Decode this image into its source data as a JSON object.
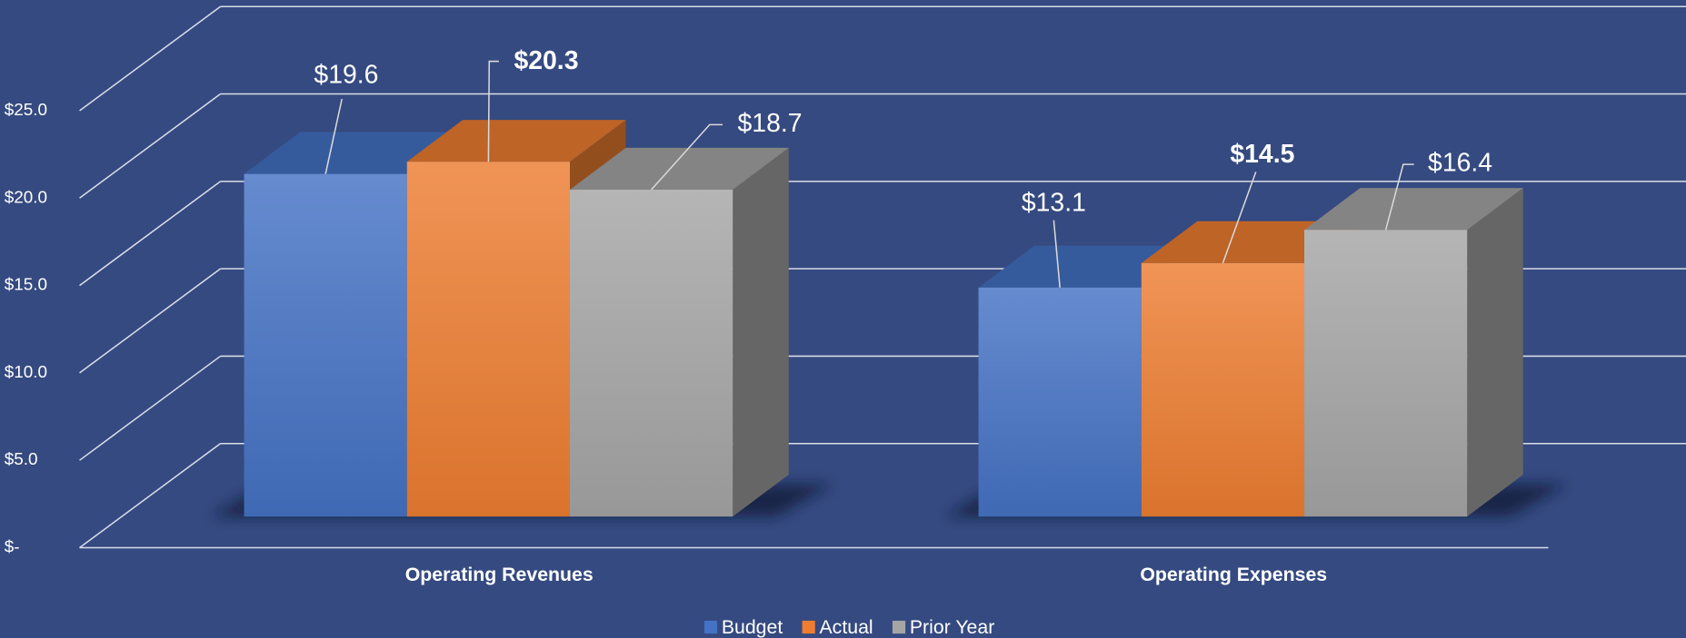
{
  "chart_data": {
    "type": "bar3d",
    "categories": [
      "Operating Revenues",
      "Operating Expenses"
    ],
    "series": [
      {
        "name": "Budget",
        "color": "#4472c4",
        "values": [
          19.6,
          13.1
        ],
        "value_labels": [
          "$19.6",
          "$13.1"
        ]
      },
      {
        "name": "Actual",
        "color": "#ed7d31",
        "values": [
          20.3,
          14.5
        ],
        "value_labels": [
          "$20.3",
          "$14.5"
        ],
        "bold_labels": true
      },
      {
        "name": "Prior Year",
        "color": "#a5a5a5",
        "values": [
          18.7,
          16.4
        ],
        "value_labels": [
          "$18.7",
          "$16.4"
        ]
      }
    ],
    "ylim": [
      0,
      25
    ],
    "yticks": [
      {
        "value": 0,
        "label": "$-"
      },
      {
        "value": 5,
        "label": "$5.0"
      },
      {
        "value": 10,
        "label": "$10.0"
      },
      {
        "value": 15,
        "label": "$15.0"
      },
      {
        "value": 20,
        "label": "$20.0"
      },
      {
        "value": 25,
        "label": "$25.0"
      }
    ],
    "grid": true,
    "legend": "bottom"
  }
}
